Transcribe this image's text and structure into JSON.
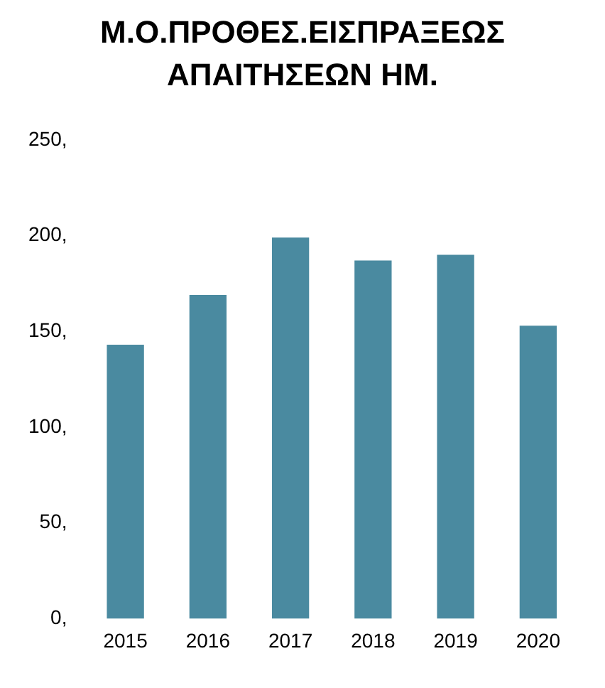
{
  "chart_data": {
    "type": "bar",
    "title": "Μ.Ο.ΠΡΟΘΕΣ.ΕΙΣΠΡΑΞΕΩΣ ΑΠΑΙΤΗΣΕΩΝ ΗΜ.",
    "categories": [
      "2015",
      "2016",
      "2017",
      "2018",
      "2019",
      "2020"
    ],
    "values": [
      143,
      169,
      199,
      187,
      190,
      153
    ],
    "color": "#4a8aa0",
    "ylim": [
      0,
      250
    ],
    "yticks": [
      {
        "value": 0,
        "label": "0,"
      },
      {
        "value": 50,
        "label": "50,"
      },
      {
        "value": 100,
        "label": "100,"
      },
      {
        "value": 150,
        "label": "150,"
      },
      {
        "value": 200,
        "label": "200,"
      },
      {
        "value": 250,
        "label": "250,"
      }
    ],
    "grid": false
  }
}
